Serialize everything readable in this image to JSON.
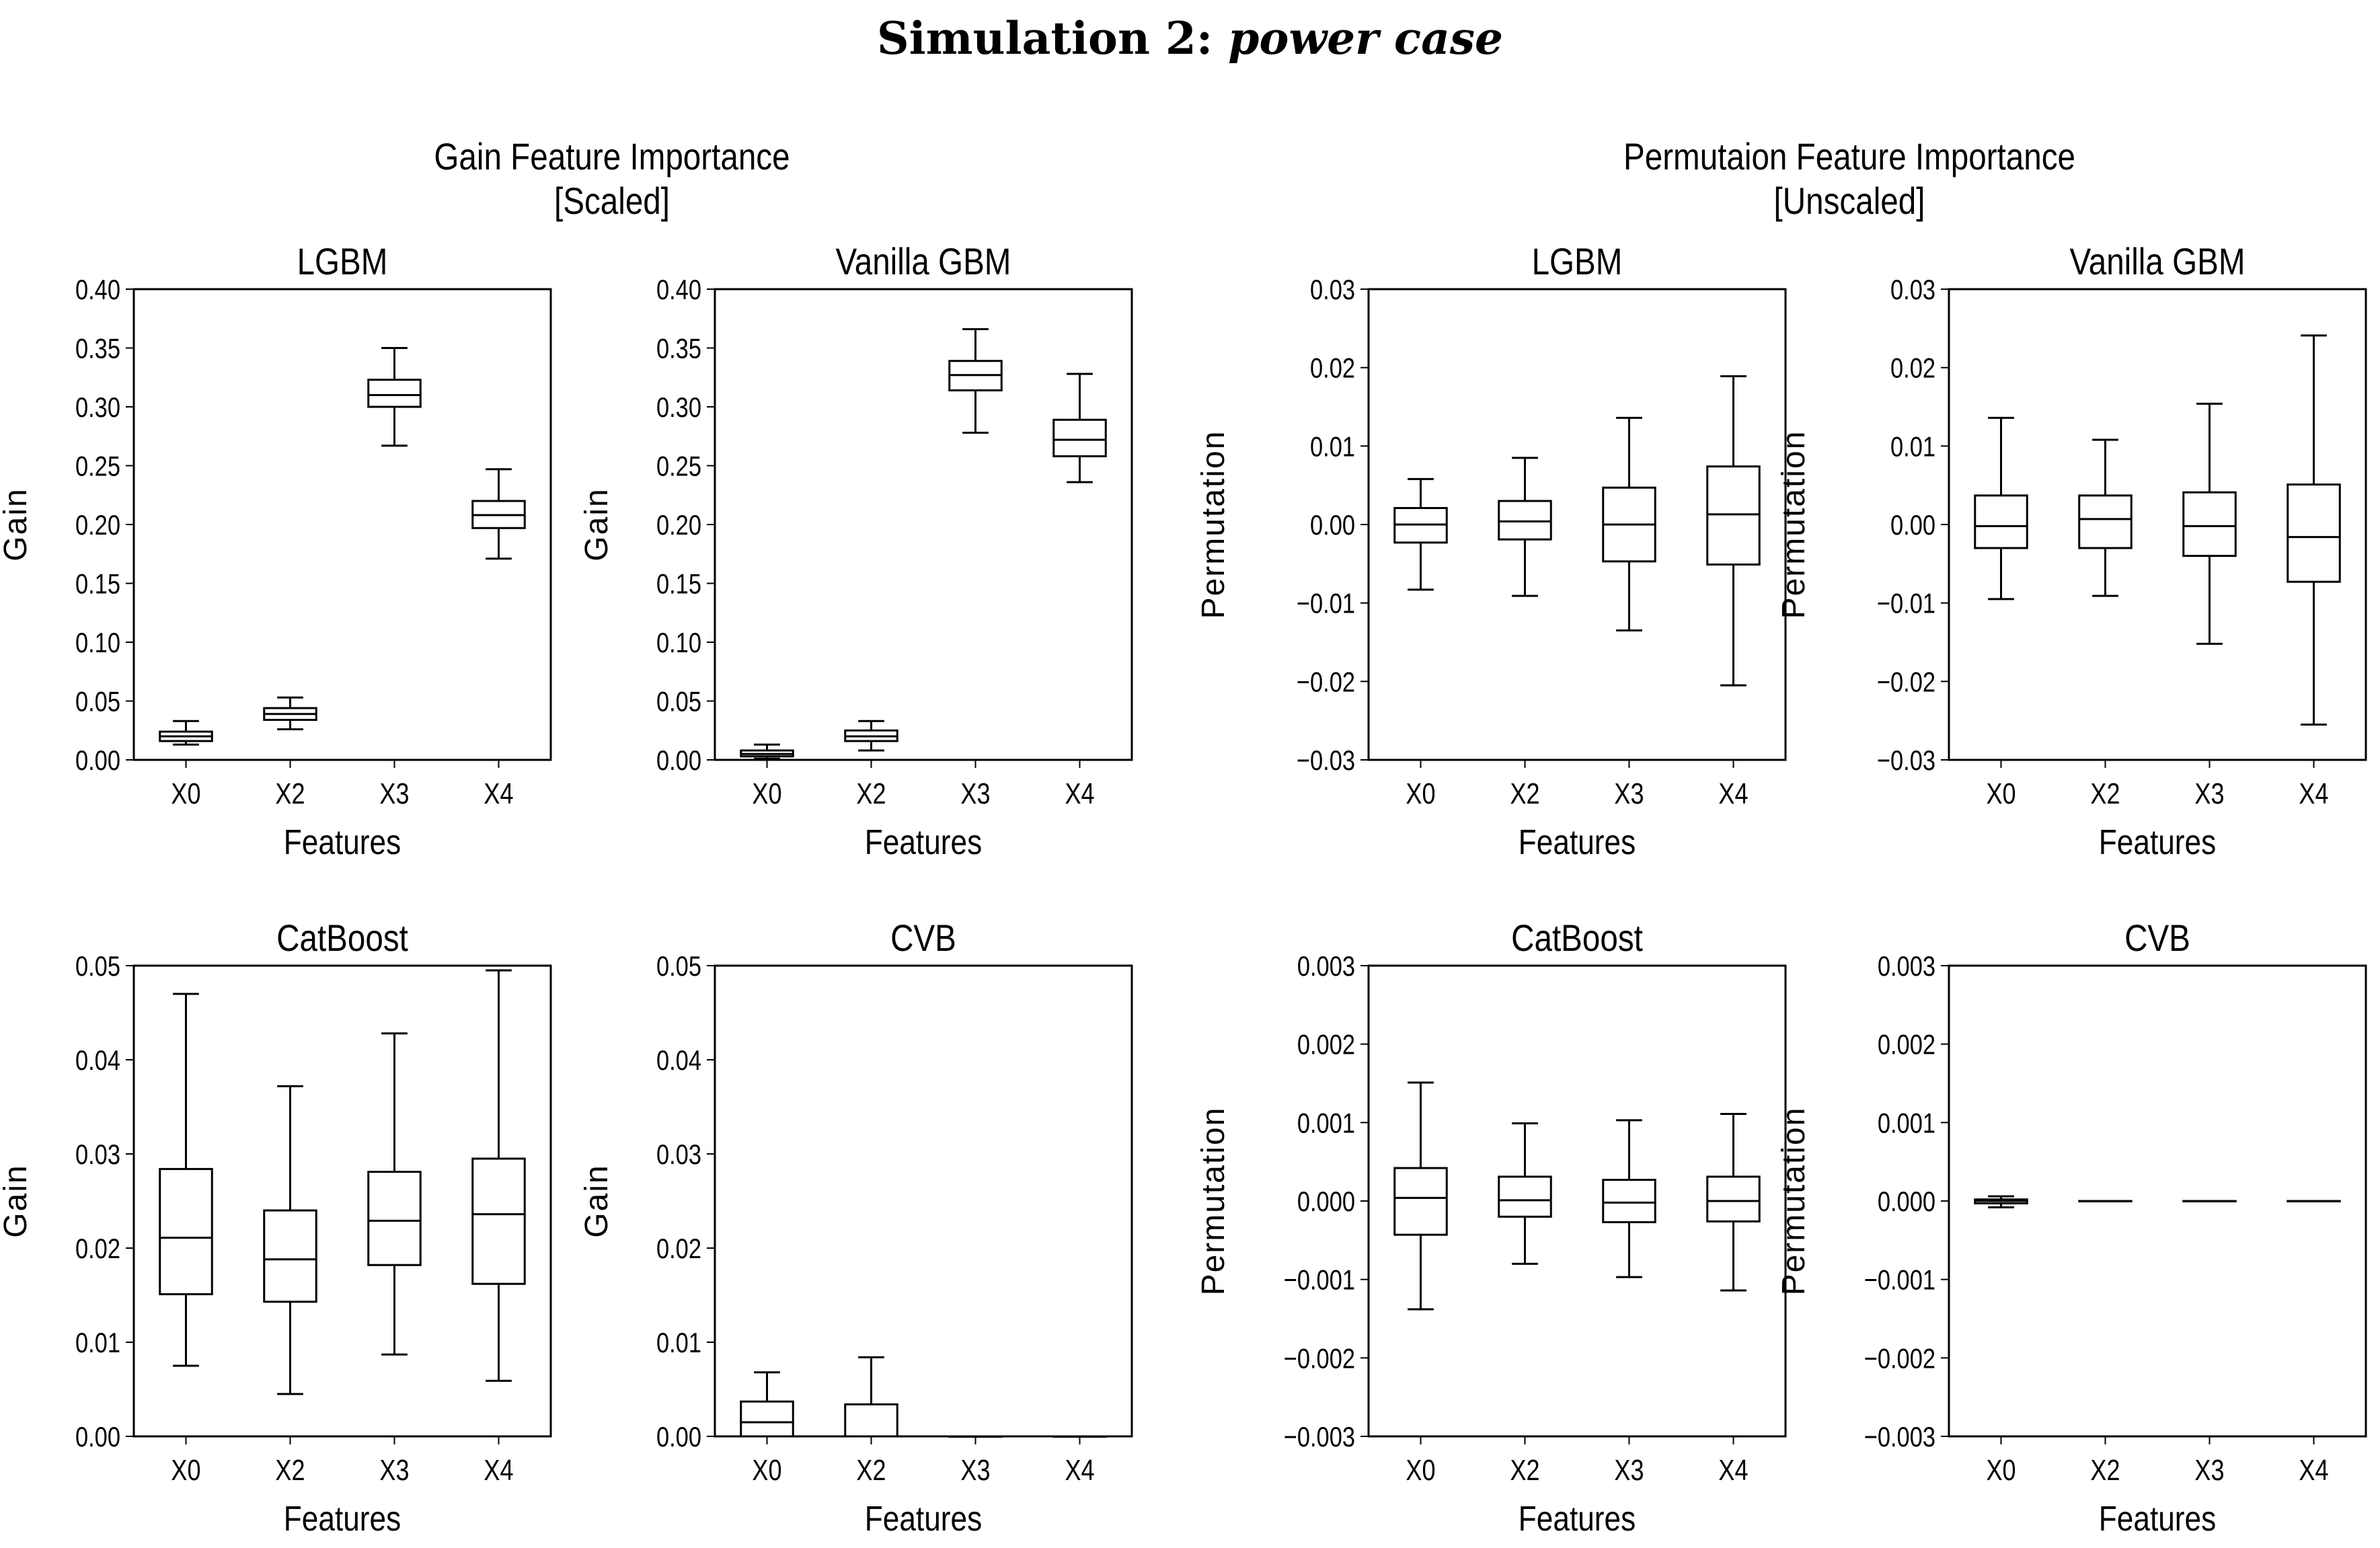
{
  "title": {
    "bold": "Simulation 2:",
    "italic": "power case"
  },
  "groups": [
    {
      "line1": "Gain Feature Importance",
      "line2": "[Scaled]"
    },
    {
      "line1": "Permutaion Feature Importance",
      "line2": "[Unscaled]"
    }
  ],
  "chart_data": [
    {
      "type": "box",
      "title": "LGBM",
      "xlabel": "Features",
      "ylabel": "Gain",
      "categories": [
        "X0",
        "X2",
        "X3",
        "X4"
      ],
      "ylim": [
        0,
        0.4
      ],
      "yticks": [
        "0.00",
        "0.05",
        "0.10",
        "0.15",
        "0.20",
        "0.25",
        "0.30",
        "0.35",
        "0.40"
      ],
      "boxes": [
        {
          "whislo": 0.013,
          "q1": 0.016,
          "med": 0.02,
          "q3": 0.024,
          "whishi": 0.033
        },
        {
          "whislo": 0.026,
          "q1": 0.034,
          "med": 0.039,
          "q3": 0.044,
          "whishi": 0.053
        },
        {
          "whislo": 0.267,
          "q1": 0.3,
          "med": 0.31,
          "q3": 0.323,
          "whishi": 0.35
        },
        {
          "whislo": 0.171,
          "q1": 0.197,
          "med": 0.208,
          "q3": 0.22,
          "whishi": 0.247
        }
      ]
    },
    {
      "type": "box",
      "title": "Vanilla GBM",
      "xlabel": "Features",
      "ylabel": "Gain",
      "categories": [
        "X0",
        "X2",
        "X3",
        "X4"
      ],
      "ylim": [
        0,
        0.4
      ],
      "yticks": [
        "0.00",
        "0.05",
        "0.10",
        "0.15",
        "0.20",
        "0.25",
        "0.30",
        "0.35",
        "0.40"
      ],
      "boxes": [
        {
          "whislo": 0.001,
          "q1": 0.003,
          "med": 0.005,
          "q3": 0.008,
          "whishi": 0.013
        },
        {
          "whislo": 0.008,
          "q1": 0.016,
          "med": 0.02,
          "q3": 0.025,
          "whishi": 0.033
        },
        {
          "whislo": 0.278,
          "q1": 0.314,
          "med": 0.327,
          "q3": 0.339,
          "whishi": 0.366
        },
        {
          "whislo": 0.236,
          "q1": 0.258,
          "med": 0.272,
          "q3": 0.289,
          "whishi": 0.328
        }
      ]
    },
    {
      "type": "box",
      "title": "LGBM",
      "xlabel": "Features",
      "ylabel": "Permutation",
      "categories": [
        "X0",
        "X2",
        "X3",
        "X4"
      ],
      "ylim": [
        -0.03,
        0.03
      ],
      "yticks": [
        "−0.03",
        "−0.02",
        "−0.01",
        "0.00",
        "0.01",
        "0.02",
        "0.03"
      ],
      "boxes": [
        {
          "whislo": -0.0083,
          "q1": -0.0023,
          "med": 0.0,
          "q3": 0.0021,
          "whishi": 0.0058
        },
        {
          "whislo": -0.0091,
          "q1": -0.0019,
          "med": 0.0004,
          "q3": 0.003,
          "whishi": 0.0085
        },
        {
          "whislo": -0.0135,
          "q1": -0.0047,
          "med": 0.0,
          "q3": 0.0047,
          "whishi": 0.0136
        },
        {
          "whislo": -0.0205,
          "q1": -0.0051,
          "med": 0.0013,
          "q3": 0.0074,
          "whishi": 0.0189
        }
      ]
    },
    {
      "type": "box",
      "title": "Vanilla GBM",
      "xlabel": "Features",
      "ylabel": "Permutation",
      "categories": [
        "X0",
        "X2",
        "X3",
        "X4"
      ],
      "ylim": [
        -0.03,
        0.03
      ],
      "yticks": [
        "−0.03",
        "−0.02",
        "−0.01",
        "0.00",
        "0.01",
        "0.02",
        "0.03"
      ],
      "boxes": [
        {
          "whislo": -0.0095,
          "q1": -0.003,
          "med": -0.0002,
          "q3": 0.0037,
          "whishi": 0.0136
        },
        {
          "whislo": -0.0091,
          "q1": -0.003,
          "med": 0.0007,
          "q3": 0.0037,
          "whishi": 0.0108
        },
        {
          "whislo": -0.0152,
          "q1": -0.004,
          "med": -0.0002,
          "q3": 0.0041,
          "whishi": 0.0154
        },
        {
          "whislo": -0.0255,
          "q1": -0.0073,
          "med": -0.0016,
          "q3": 0.0051,
          "whishi": 0.0241
        }
      ]
    },
    {
      "type": "box",
      "title": "CatBoost",
      "xlabel": "Features",
      "ylabel": "Gain",
      "categories": [
        "X0",
        "X2",
        "X3",
        "X4"
      ],
      "ylim": [
        0,
        0.05
      ],
      "yticks": [
        "0.00",
        "0.01",
        "0.02",
        "0.03",
        "0.04",
        "0.05"
      ],
      "boxes": [
        {
          "whislo": 0.0075,
          "q1": 0.0151,
          "med": 0.0211,
          "q3": 0.0284,
          "whishi": 0.047
        },
        {
          "whislo": 0.0045,
          "q1": 0.0143,
          "med": 0.0188,
          "q3": 0.024,
          "whishi": 0.0372
        },
        {
          "whislo": 0.0087,
          "q1": 0.0182,
          "med": 0.0229,
          "q3": 0.0281,
          "whishi": 0.0428
        },
        {
          "whislo": 0.0059,
          "q1": 0.0162,
          "med": 0.0236,
          "q3": 0.0295,
          "whishi": 0.0495
        }
      ]
    },
    {
      "type": "box",
      "title": "CVB",
      "xlabel": "Features",
      "ylabel": "Gain",
      "categories": [
        "X0",
        "X2",
        "X3",
        "X4"
      ],
      "ylim": [
        0,
        0.05
      ],
      "yticks": [
        "0.00",
        "0.01",
        "0.02",
        "0.03",
        "0.04",
        "0.05"
      ],
      "boxes": [
        {
          "whislo": 0.0,
          "q1": 0.0,
          "med": 0.0015,
          "q3": 0.0037,
          "whishi": 0.0068
        },
        {
          "whislo": 0.0,
          "q1": 0.0,
          "med": 0.0,
          "q3": 0.0034,
          "whishi": 0.0084
        },
        {
          "whislo": 0,
          "q1": 0,
          "med": 0,
          "q3": 0,
          "whishi": 0
        },
        {
          "whislo": 0,
          "q1": 0,
          "med": 0,
          "q3": 0,
          "whishi": 0
        }
      ]
    },
    {
      "type": "box",
      "title": "CatBoost",
      "xlabel": "Features",
      "ylabel": "Permutation",
      "categories": [
        "X0",
        "X2",
        "X3",
        "X4"
      ],
      "ylim": [
        -0.003,
        0.003
      ],
      "yticks": [
        "−0.003",
        "−0.002",
        "−0.001",
        "0.000",
        "0.001",
        "0.002",
        "0.003"
      ],
      "boxes": [
        {
          "whislo": -0.00138,
          "q1": -0.00043,
          "med": 4e-05,
          "q3": 0.00042,
          "whishi": 0.00151
        },
        {
          "whislo": -0.0008,
          "q1": -0.0002,
          "med": 1e-05,
          "q3": 0.00031,
          "whishi": 0.00099
        },
        {
          "whislo": -0.00097,
          "q1": -0.00027,
          "med": -2e-05,
          "q3": 0.00027,
          "whishi": 0.00103
        },
        {
          "whislo": -0.00114,
          "q1": -0.00026,
          "med": 0.0,
          "q3": 0.00031,
          "whishi": 0.00111
        }
      ]
    },
    {
      "type": "box",
      "title": "CVB",
      "xlabel": "Features",
      "ylabel": "Permutation",
      "categories": [
        "X0",
        "X2",
        "X3",
        "X4"
      ],
      "ylim": [
        -0.003,
        0.003
      ],
      "yticks": [
        "−0.003",
        "−0.002",
        "−0.001",
        "0.000",
        "0.001",
        "0.002",
        "0.003"
      ],
      "boxes": [
        {
          "whislo": -8e-05,
          "q1": -3e-05,
          "med": 0.0,
          "q3": 2e-05,
          "whishi": 6e-05
        },
        {
          "whislo": 0,
          "q1": 0,
          "med": 0,
          "q3": 0,
          "whishi": 0
        },
        {
          "whislo": 0,
          "q1": 0,
          "med": 0,
          "q3": 0,
          "whishi": 0
        },
        {
          "whislo": 0,
          "q1": 0,
          "med": 0,
          "q3": 0,
          "whishi": 0
        }
      ]
    }
  ]
}
